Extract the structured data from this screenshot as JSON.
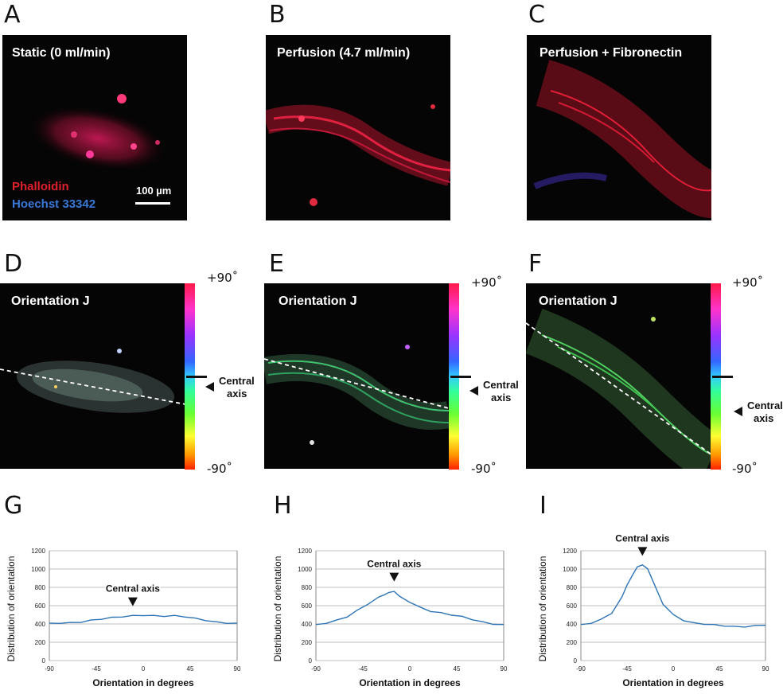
{
  "panels": {
    "A": {
      "label": "A",
      "title": "Static (0 ml/min)",
      "legend": {
        "phalloidin": "Phalloidin",
        "hoechst": "Hoechst 33342"
      },
      "scale_bar": "100 µm"
    },
    "B": {
      "label": "B",
      "title": "Perfusion (4.7 ml/min)"
    },
    "C": {
      "label": "C",
      "title": "Perfusion + Fibronectin"
    },
    "D": {
      "label": "D",
      "title": "Orientation J",
      "cb_top": "+90˚",
      "cb_bottom": "-90˚",
      "axis_note": [
        "Central",
        "axis"
      ]
    },
    "E": {
      "label": "E",
      "title": "Orientation J",
      "cb_top": "+90˚",
      "cb_bottom": "-90˚",
      "axis_note": [
        "Central",
        "axis"
      ]
    },
    "F": {
      "label": "F",
      "title": "Orientation J",
      "cb_top": "+90˚",
      "cb_bottom": "-90˚",
      "axis_note": [
        "Central",
        "axis"
      ]
    },
    "G": {
      "label": "G"
    },
    "H": {
      "label": "H"
    },
    "I": {
      "label": "I"
    }
  },
  "colors": {
    "line": "#2e74b5",
    "grid": "#bfbfbf",
    "phalloidin": "#e0202a",
    "hoechst": "#3a78d8"
  },
  "chart_data": [
    {
      "type": "line",
      "panel": "G",
      "xlabel": "Orientation in degrees",
      "ylabel": "Distribution of orientation",
      "xlim": [
        -90,
        90
      ],
      "ylim": [
        0,
        1200
      ],
      "xticks": [
        -90,
        -45,
        0,
        45,
        90
      ],
      "yticks": [
        0,
        200,
        400,
        600,
        800,
        1000,
        1200
      ],
      "annotation": {
        "text": "Central axis",
        "x": -10,
        "y": 490
      },
      "series": [
        {
          "name": "orientation",
          "x": [
            -90,
            -80,
            -70,
            -60,
            -50,
            -40,
            -30,
            -20,
            -10,
            0,
            10,
            20,
            30,
            40,
            50,
            60,
            70,
            80,
            90
          ],
          "y": [
            405,
            410,
            412,
            420,
            440,
            455,
            470,
            480,
            490,
            495,
            490,
            485,
            490,
            480,
            460,
            440,
            420,
            410,
            405
          ]
        }
      ]
    },
    {
      "type": "line",
      "panel": "H",
      "xlabel": "Orientation in degrees",
      "ylabel": "Distribution of orientation",
      "xlim": [
        -90,
        90
      ],
      "ylim": [
        0,
        1200
      ],
      "xticks": [
        -90,
        -45,
        0,
        45,
        90
      ],
      "yticks": [
        0,
        200,
        400,
        600,
        800,
        1000,
        1200
      ],
      "annotation": {
        "text": "Central axis",
        "x": -15,
        "y": 760
      },
      "series": [
        {
          "name": "orientation",
          "x": [
            -90,
            -80,
            -70,
            -60,
            -50,
            -40,
            -30,
            -25,
            -20,
            -15,
            -10,
            0,
            10,
            20,
            30,
            40,
            50,
            60,
            70,
            80,
            90
          ],
          "y": [
            390,
            410,
            440,
            480,
            550,
            620,
            690,
            720,
            740,
            760,
            700,
            640,
            580,
            540,
            520,
            500,
            480,
            450,
            420,
            400,
            390
          ]
        }
      ]
    },
    {
      "type": "line",
      "panel": "I",
      "xlabel": "Orientation in degrees",
      "ylabel": "Distribution of orientation",
      "xlim": [
        -90,
        90
      ],
      "ylim": [
        0,
        1200
      ],
      "xticks": [
        -90,
        -45,
        0,
        45,
        90
      ],
      "yticks": [
        0,
        200,
        400,
        600,
        800,
        1000,
        1200
      ],
      "annotation": {
        "text": "Central axis",
        "x": -30,
        "y": 1040
      },
      "series": [
        {
          "name": "orientation",
          "x": [
            -90,
            -80,
            -70,
            -60,
            -55,
            -50,
            -45,
            -40,
            -35,
            -30,
            -25,
            -20,
            -15,
            -10,
            0,
            10,
            20,
            30,
            40,
            50,
            60,
            70,
            80,
            90
          ],
          "y": [
            390,
            410,
            450,
            520,
            600,
            700,
            820,
            930,
            1020,
            1050,
            1000,
            880,
            740,
            620,
            500,
            440,
            410,
            400,
            390,
            380,
            370,
            370,
            380,
            390
          ]
        }
      ]
    }
  ]
}
